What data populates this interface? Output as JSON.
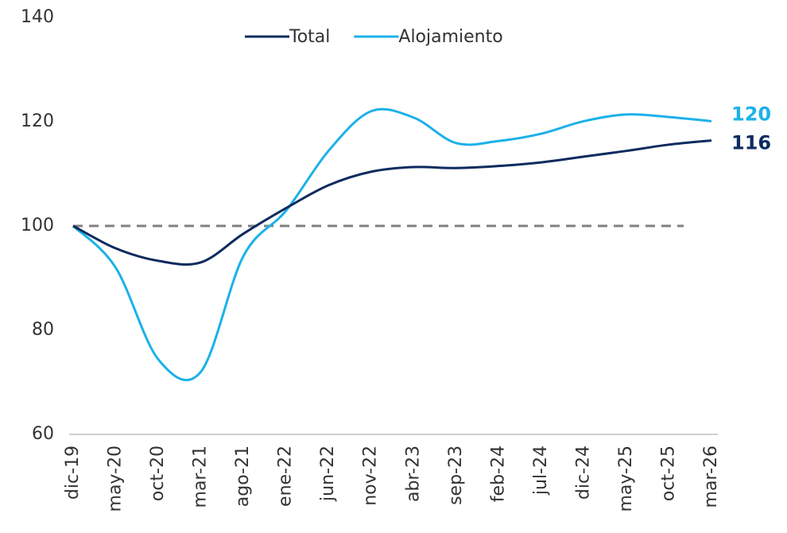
{
  "chart_data": {
    "type": "line",
    "categories": [
      "dic-19",
      "may-20",
      "oct-20",
      "mar-21",
      "ago-21",
      "ene-22",
      "jun-22",
      "nov-22",
      "abr-23",
      "sep-23",
      "feb-24",
      "jul-24",
      "dic-24",
      "may-25",
      "oct-25",
      "mar-26"
    ],
    "series": [
      {
        "name": "Total",
        "color": "#0e2b5f",
        "values": [
          100,
          95.7,
          93.3,
          93,
          98.5,
          103.4,
          107.8,
          110.4,
          111.3,
          111.1,
          111.5,
          112.2,
          113.3,
          114.4,
          115.6,
          116.4
        ],
        "end_label": "116"
      },
      {
        "name": "Alojamiento",
        "color": "#1cb1e9",
        "values": [
          100,
          92,
          74.4,
          72,
          94.2,
          102.9,
          114.4,
          122,
          120.8,
          115.9,
          116.3,
          117.7,
          120.1,
          121.4,
          120.9,
          120.1
        ],
        "end_label": "120"
      }
    ],
    "reference_line": 100,
    "ylim": [
      60,
      140
    ],
    "yticks": [
      60,
      80,
      100,
      120,
      140
    ],
    "legend": "top"
  }
}
